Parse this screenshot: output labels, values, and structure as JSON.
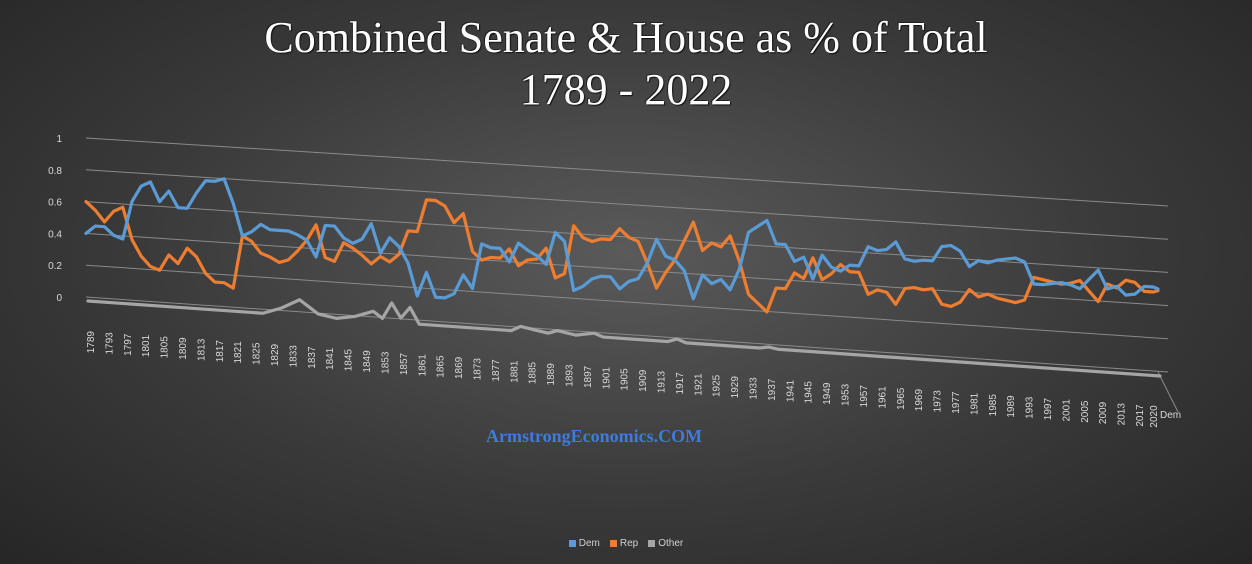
{
  "title_line1": "Combined Senate & House as % of Total",
  "title_line2": "1789 - 2022",
  "watermark": "ArmstrongEconomics.COM",
  "chart_data": {
    "type": "line",
    "y_ticks": [
      "0",
      "0.2",
      "0.4",
      "0.6",
      "0.8",
      "1"
    ],
    "ylim": [
      0,
      1
    ],
    "x_tick_labels": [
      "1789",
      "1793",
      "1797",
      "1801",
      "1805",
      "1809",
      "1813",
      "1817",
      "1821",
      "1825",
      "1829",
      "1833",
      "1837",
      "1841",
      "1845",
      "1849",
      "1853",
      "1857",
      "1861",
      "1865",
      "1869",
      "1873",
      "1877",
      "1881",
      "1885",
      "1889",
      "1893",
      "1897",
      "1901",
      "1905",
      "1909",
      "1913",
      "1917",
      "1921",
      "1925",
      "1929",
      "1933",
      "1937",
      "1941",
      "1945",
      "1949",
      "1953",
      "1957",
      "1961",
      "1965",
      "1969",
      "1973",
      "1977",
      "1981",
      "1985",
      "1989",
      "1993",
      "1997",
      "2001",
      "2005",
      "2009",
      "2013",
      "2017",
      "2020"
    ],
    "depth_axis_label": "Dem",
    "legend_position": "bottom",
    "grid": true,
    "series": [
      {
        "name": "Dem",
        "color": "#5b9bd5",
        "points": [
          [
            1789,
            0.4
          ],
          [
            1791,
            0.45
          ],
          [
            1793,
            0.45
          ],
          [
            1795,
            0.4
          ],
          [
            1797,
            0.38
          ],
          [
            1799,
            0.62
          ],
          [
            1801,
            0.72
          ],
          [
            1803,
            0.75
          ],
          [
            1805,
            0.63
          ],
          [
            1807,
            0.7
          ],
          [
            1809,
            0.6
          ],
          [
            1811,
            0.6
          ],
          [
            1813,
            0.7
          ],
          [
            1815,
            0.78
          ],
          [
            1817,
            0.78
          ],
          [
            1819,
            0.8
          ],
          [
            1821,
            0.65
          ],
          [
            1823,
            0.45
          ],
          [
            1825,
            0.48
          ],
          [
            1827,
            0.53
          ],
          [
            1829,
            0.5
          ],
          [
            1831,
            0.5
          ],
          [
            1833,
            0.5
          ],
          [
            1835,
            0.48
          ],
          [
            1837,
            0.45
          ],
          [
            1839,
            0.35
          ],
          [
            1841,
            0.55
          ],
          [
            1843,
            0.55
          ],
          [
            1845,
            0.48
          ],
          [
            1847,
            0.45
          ],
          [
            1849,
            0.48
          ],
          [
            1851,
            0.58
          ],
          [
            1853,
            0.4
          ],
          [
            1855,
            0.5
          ],
          [
            1857,
            0.45
          ],
          [
            1859,
            0.35
          ],
          [
            1861,
            0.15
          ],
          [
            1863,
            0.3
          ],
          [
            1865,
            0.15
          ],
          [
            1867,
            0.15
          ],
          [
            1869,
            0.18
          ],
          [
            1871,
            0.3
          ],
          [
            1873,
            0.22
          ],
          [
            1875,
            0.5
          ],
          [
            1877,
            0.48
          ],
          [
            1879,
            0.48
          ],
          [
            1881,
            0.4
          ],
          [
            1883,
            0.52
          ],
          [
            1885,
            0.48
          ],
          [
            1887,
            0.45
          ],
          [
            1889,
            0.4
          ],
          [
            1891,
            0.6
          ],
          [
            1893,
            0.55
          ],
          [
            1895,
            0.25
          ],
          [
            1897,
            0.28
          ],
          [
            1899,
            0.33
          ],
          [
            1901,
            0.35
          ],
          [
            1903,
            0.35
          ],
          [
            1905,
            0.28
          ],
          [
            1907,
            0.33
          ],
          [
            1909,
            0.35
          ],
          [
            1911,
            0.45
          ],
          [
            1913,
            0.6
          ],
          [
            1915,
            0.5
          ],
          [
            1917,
            0.48
          ],
          [
            1919,
            0.42
          ],
          [
            1921,
            0.25
          ],
          [
            1923,
            0.4
          ],
          [
            1925,
            0.35
          ],
          [
            1927,
            0.38
          ],
          [
            1929,
            0.32
          ],
          [
            1931,
            0.45
          ],
          [
            1933,
            0.68
          ],
          [
            1935,
            0.72
          ],
          [
            1937,
            0.76
          ],
          [
            1939,
            0.62
          ],
          [
            1941,
            0.62
          ],
          [
            1943,
            0.52
          ],
          [
            1945,
            0.55
          ],
          [
            1947,
            0.42
          ],
          [
            1949,
            0.57
          ],
          [
            1951,
            0.5
          ],
          [
            1953,
            0.48
          ],
          [
            1955,
            0.52
          ],
          [
            1957,
            0.52
          ],
          [
            1959,
            0.64
          ],
          [
            1961,
            0.62
          ],
          [
            1963,
            0.63
          ],
          [
            1965,
            0.68
          ],
          [
            1967,
            0.58
          ],
          [
            1969,
            0.57
          ],
          [
            1971,
            0.58
          ],
          [
            1973,
            0.58
          ],
          [
            1975,
            0.67
          ],
          [
            1977,
            0.68
          ],
          [
            1979,
            0.65
          ],
          [
            1981,
            0.56
          ],
          [
            1983,
            0.6
          ],
          [
            1985,
            0.59
          ],
          [
            1987,
            0.61
          ],
          [
            1989,
            0.62
          ],
          [
            1991,
            0.63
          ],
          [
            1993,
            0.61
          ],
          [
            1995,
            0.48
          ],
          [
            1997,
            0.48
          ],
          [
            1999,
            0.49
          ],
          [
            2001,
            0.5
          ],
          [
            2003,
            0.49
          ],
          [
            2005,
            0.47
          ],
          [
            2007,
            0.53
          ],
          [
            2009,
            0.59
          ],
          [
            2011,
            0.48
          ],
          [
            2013,
            0.5
          ],
          [
            2015,
            0.45
          ],
          [
            2017,
            0.46
          ],
          [
            2019,
            0.51
          ],
          [
            2021,
            0.51
          ],
          [
            2022,
            0.5
          ]
        ]
      },
      {
        "name": "Rep",
        "color": "#ed7d31",
        "points": [
          [
            1789,
            0.6
          ],
          [
            1791,
            0.55
          ],
          [
            1793,
            0.48
          ],
          [
            1795,
            0.55
          ],
          [
            1797,
            0.58
          ],
          [
            1799,
            0.38
          ],
          [
            1801,
            0.28
          ],
          [
            1803,
            0.22
          ],
          [
            1805,
            0.2
          ],
          [
            1807,
            0.3
          ],
          [
            1809,
            0.25
          ],
          [
            1811,
            0.35
          ],
          [
            1813,
            0.3
          ],
          [
            1815,
            0.2
          ],
          [
            1817,
            0.15
          ],
          [
            1819,
            0.15
          ],
          [
            1821,
            0.12
          ],
          [
            1823,
            0.45
          ],
          [
            1825,
            0.42
          ],
          [
            1827,
            0.35
          ],
          [
            1829,
            0.33
          ],
          [
            1831,
            0.3
          ],
          [
            1833,
            0.32
          ],
          [
            1835,
            0.38
          ],
          [
            1837,
            0.45
          ],
          [
            1839,
            0.55
          ],
          [
            1841,
            0.35
          ],
          [
            1843,
            0.33
          ],
          [
            1845,
            0.45
          ],
          [
            1847,
            0.42
          ],
          [
            1849,
            0.38
          ],
          [
            1851,
            0.33
          ],
          [
            1853,
            0.38
          ],
          [
            1855,
            0.35
          ],
          [
            1857,
            0.4
          ],
          [
            1859,
            0.55
          ],
          [
            1861,
            0.55
          ],
          [
            1863,
            0.75
          ],
          [
            1865,
            0.75
          ],
          [
            1867,
            0.72
          ],
          [
            1869,
            0.62
          ],
          [
            1871,
            0.68
          ],
          [
            1873,
            0.45
          ],
          [
            1875,
            0.4
          ],
          [
            1877,
            0.42
          ],
          [
            1879,
            0.42
          ],
          [
            1881,
            0.48
          ],
          [
            1883,
            0.38
          ],
          [
            1885,
            0.42
          ],
          [
            1887,
            0.43
          ],
          [
            1889,
            0.5
          ],
          [
            1891,
            0.32
          ],
          [
            1893,
            0.35
          ],
          [
            1895,
            0.65
          ],
          [
            1897,
            0.58
          ],
          [
            1899,
            0.56
          ],
          [
            1901,
            0.58
          ],
          [
            1903,
            0.58
          ],
          [
            1905,
            0.65
          ],
          [
            1907,
            0.6
          ],
          [
            1909,
            0.58
          ],
          [
            1911,
            0.45
          ],
          [
            1913,
            0.3
          ],
          [
            1915,
            0.4
          ],
          [
            1917,
            0.48
          ],
          [
            1919,
            0.6
          ],
          [
            1921,
            0.72
          ],
          [
            1923,
            0.55
          ],
          [
            1925,
            0.6
          ],
          [
            1927,
            0.58
          ],
          [
            1929,
            0.65
          ],
          [
            1931,
            0.5
          ],
          [
            1933,
            0.3
          ],
          [
            1935,
            0.25
          ],
          [
            1937,
            0.2
          ],
          [
            1939,
            0.35
          ],
          [
            1941,
            0.35
          ],
          [
            1943,
            0.45
          ],
          [
            1945,
            0.42
          ],
          [
            1947,
            0.55
          ],
          [
            1949,
            0.42
          ],
          [
            1951,
            0.46
          ],
          [
            1953,
            0.52
          ],
          [
            1955,
            0.48
          ],
          [
            1957,
            0.48
          ],
          [
            1959,
            0.35
          ],
          [
            1961,
            0.38
          ],
          [
            1963,
            0.37
          ],
          [
            1965,
            0.3
          ],
          [
            1967,
            0.4
          ],
          [
            1969,
            0.41
          ],
          [
            1971,
            0.4
          ],
          [
            1973,
            0.41
          ],
          [
            1975,
            0.32
          ],
          [
            1977,
            0.31
          ],
          [
            1979,
            0.34
          ],
          [
            1981,
            0.42
          ],
          [
            1983,
            0.38
          ],
          [
            1985,
            0.4
          ],
          [
            1987,
            0.38
          ],
          [
            1989,
            0.37
          ],
          [
            1991,
            0.36
          ],
          [
            1993,
            0.38
          ],
          [
            1995,
            0.52
          ],
          [
            1997,
            0.51
          ],
          [
            1999,
            0.5
          ],
          [
            2001,
            0.49
          ],
          [
            2003,
            0.5
          ],
          [
            2005,
            0.52
          ],
          [
            2007,
            0.46
          ],
          [
            2009,
            0.4
          ],
          [
            2011,
            0.51
          ],
          [
            2013,
            0.49
          ],
          [
            2015,
            0.54
          ],
          [
            2017,
            0.53
          ],
          [
            2019,
            0.48
          ],
          [
            2021,
            0.48
          ],
          [
            2022,
            0.49
          ]
        ]
      },
      {
        "name": "Other",
        "color": "#a5a5a5",
        "points": [
          [
            1789,
            0.0
          ],
          [
            1807,
            0.0
          ],
          [
            1827,
            0.0
          ],
          [
            1831,
            0.04
          ],
          [
            1835,
            0.1
          ],
          [
            1837,
            0.06
          ],
          [
            1839,
            0.02
          ],
          [
            1843,
            0.0
          ],
          [
            1847,
            0.02
          ],
          [
            1851,
            0.06
          ],
          [
            1853,
            0.02
          ],
          [
            1855,
            0.12
          ],
          [
            1857,
            0.03
          ],
          [
            1859,
            0.1
          ],
          [
            1861,
            0.0
          ],
          [
            1881,
            0.0
          ],
          [
            1883,
            0.03
          ],
          [
            1885,
            0.02
          ],
          [
            1889,
            0.0
          ],
          [
            1891,
            0.02
          ],
          [
            1895,
            0.0
          ],
          [
            1899,
            0.02
          ],
          [
            1901,
            0.0
          ],
          [
            1903,
            0.0
          ],
          [
            1915,
            0.0
          ],
          [
            1917,
            0.02
          ],
          [
            1919,
            0.0
          ],
          [
            1935,
            0.0
          ],
          [
            1937,
            0.01
          ],
          [
            1939,
            0.0
          ],
          [
            2022,
            0.0
          ]
        ]
      }
    ]
  }
}
